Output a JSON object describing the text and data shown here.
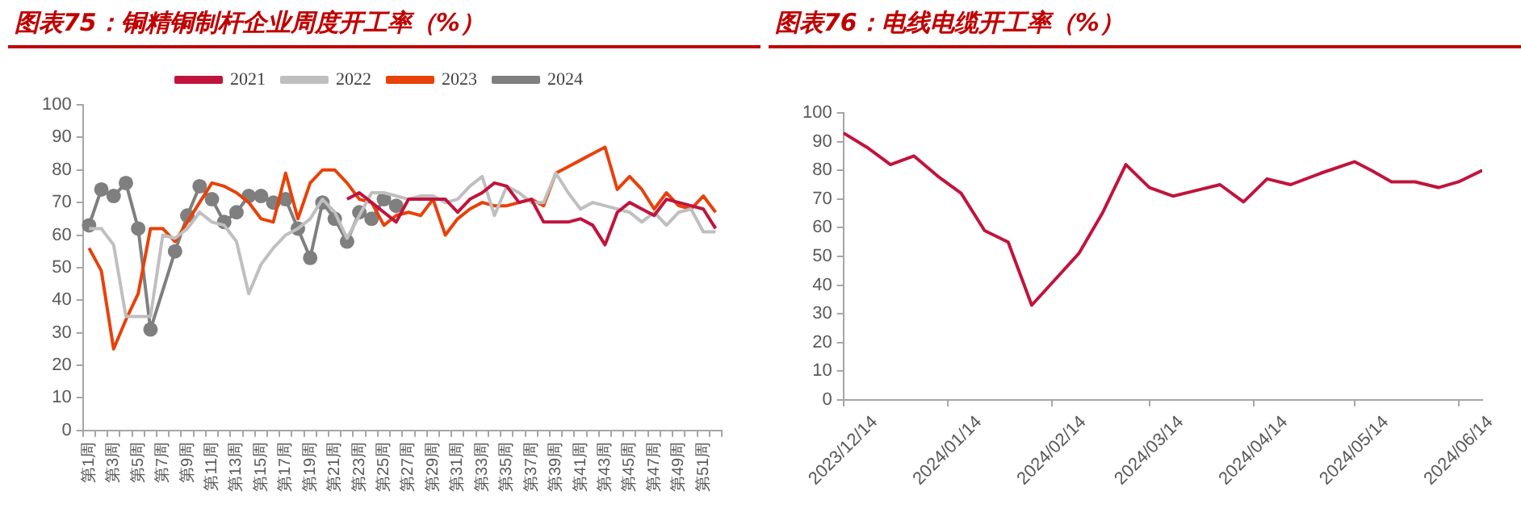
{
  "chart_data": [
    {
      "type": "line",
      "title": "图表75：铜精铜制杆企业周度开工率（%）",
      "categories": [
        "第1周",
        null,
        "第3周",
        null,
        "第5周",
        null,
        "第7周",
        null,
        "第9周",
        null,
        "第11周",
        null,
        "第13周",
        null,
        "第15周",
        null,
        "第17周",
        null,
        "第19周",
        null,
        "第21周",
        null,
        "第23周",
        null,
        "第25周",
        null,
        "第27周",
        null,
        "第29周",
        null,
        "第31周",
        null,
        "第33周",
        null,
        "第35周",
        null,
        "第37周",
        null,
        "第39周",
        null,
        "第41周",
        null,
        "第43周",
        null,
        "第45周",
        null,
        "第47周",
        null,
        "第49周",
        null,
        "第51周",
        null
      ],
      "series": [
        {
          "name": "2021",
          "color": "#c0143c",
          "marker": "none",
          "values": [
            null,
            null,
            null,
            null,
            null,
            null,
            null,
            null,
            null,
            null,
            null,
            null,
            null,
            null,
            null,
            null,
            null,
            null,
            null,
            null,
            null,
            71,
            73,
            70,
            67,
            64,
            71,
            71,
            71,
            71,
            67,
            71,
            73,
            76,
            75,
            70,
            71,
            64,
            64,
            64,
            65,
            63,
            57,
            67,
            70,
            68,
            66,
            71,
            70,
            69,
            68,
            62
          ]
        },
        {
          "name": "2022",
          "color": "#bfbfbf",
          "marker": "none",
          "values": [
            62,
            62,
            57,
            35,
            35,
            35,
            60,
            59,
            62,
            67,
            64,
            63,
            58,
            42,
            51,
            56,
            60,
            62,
            65,
            71,
            67,
            59,
            66,
            73,
            73,
            72,
            71,
            72,
            72,
            70,
            71,
            75,
            78,
            66,
            75,
            73,
            70,
            70,
            79,
            73,
            68,
            70,
            69,
            68,
            67,
            64,
            67,
            63,
            67,
            68,
            61,
            61
          ]
        },
        {
          "name": "2023",
          "color": "#e8410a",
          "marker": "none",
          "values": [
            56,
            49,
            25,
            34,
            42,
            62,
            62,
            58,
            64,
            70,
            76,
            75,
            73,
            70,
            65,
            64,
            79,
            65,
            76,
            80,
            80,
            76,
            71,
            70,
            63,
            66,
            67,
            66,
            71,
            60,
            65,
            68,
            70,
            69,
            69,
            70,
            71,
            69,
            79,
            81,
            83,
            85,
            87,
            74,
            78,
            74,
            68,
            73,
            69,
            68,
            72,
            67
          ]
        },
        {
          "name": "2024",
          "color": "#7f7f7f",
          "marker": "circle",
          "values": [
            63,
            74,
            72,
            76,
            62,
            31,
            null,
            55,
            66,
            75,
            71,
            64,
            67,
            72,
            72,
            70,
            71,
            62,
            53,
            70,
            65,
            58,
            67,
            65,
            71,
            69,
            null,
            null,
            null,
            null,
            null,
            null,
            null,
            null,
            null,
            null,
            null,
            null,
            null,
            null,
            null,
            null,
            null,
            null,
            null,
            null,
            null,
            null,
            null,
            null,
            null,
            null
          ]
        }
      ],
      "ylim": [
        0,
        100
      ],
      "yticks": [
        0,
        10,
        20,
        30,
        40,
        50,
        60,
        70,
        80,
        90,
        100
      ],
      "grid": false,
      "legend": "top"
    },
    {
      "type": "line",
      "title": "图表76：电线电缆开工率（%）",
      "x": [
        "2023-12-14",
        "2023-12-21",
        "2023-12-28",
        "2024-01-04",
        "2024-01-11",
        "2024-01-18",
        "2024-01-25",
        "2024-02-01",
        "2024-02-08",
        "2024-02-15",
        "2024-02-22",
        "2024-02-29",
        "2024-03-07",
        "2024-03-14",
        "2024-03-21",
        "2024-03-28",
        "2024-04-04",
        "2024-04-11",
        "2024-04-18",
        "2024-04-25",
        "2024-05-04",
        "2024-05-14",
        "2024-05-19",
        "2024-05-25",
        "2024-06-01",
        "2024-06-08",
        "2024-06-14",
        "2024-06-21"
      ],
      "series": [
        {
          "color": "#c0143c",
          "marker": "none",
          "values": [
            93,
            88,
            82,
            85,
            78,
            72,
            59,
            55,
            33,
            42,
            51,
            65,
            82,
            74,
            71,
            73,
            75,
            69,
            77,
            75,
            79,
            83,
            80,
            76,
            76,
            74,
            76,
            80
          ]
        }
      ],
      "xlim": [
        "2023-12-14",
        "2024-06-21"
      ],
      "xticks": [
        {
          "value": "2023-12-14",
          "label": "2023/12/14"
        },
        {
          "value": "2024-01-14",
          "label": "2024/01/14"
        },
        {
          "value": "2024-02-14",
          "label": "2024/02/14"
        },
        {
          "value": "2024-03-14",
          "label": "2024/03/14"
        },
        {
          "value": "2024-04-14",
          "label": "2024/04/14"
        },
        {
          "value": "2024-05-14",
          "label": "2024/05/14"
        },
        {
          "value": "2024-06-14",
          "label": "2024/06/14"
        }
      ],
      "ylim": [
        0,
        100
      ],
      "yticks": [
        0,
        10,
        20,
        30,
        40,
        50,
        60,
        70,
        80,
        90,
        100
      ],
      "grid": false,
      "legend": false
    }
  ]
}
